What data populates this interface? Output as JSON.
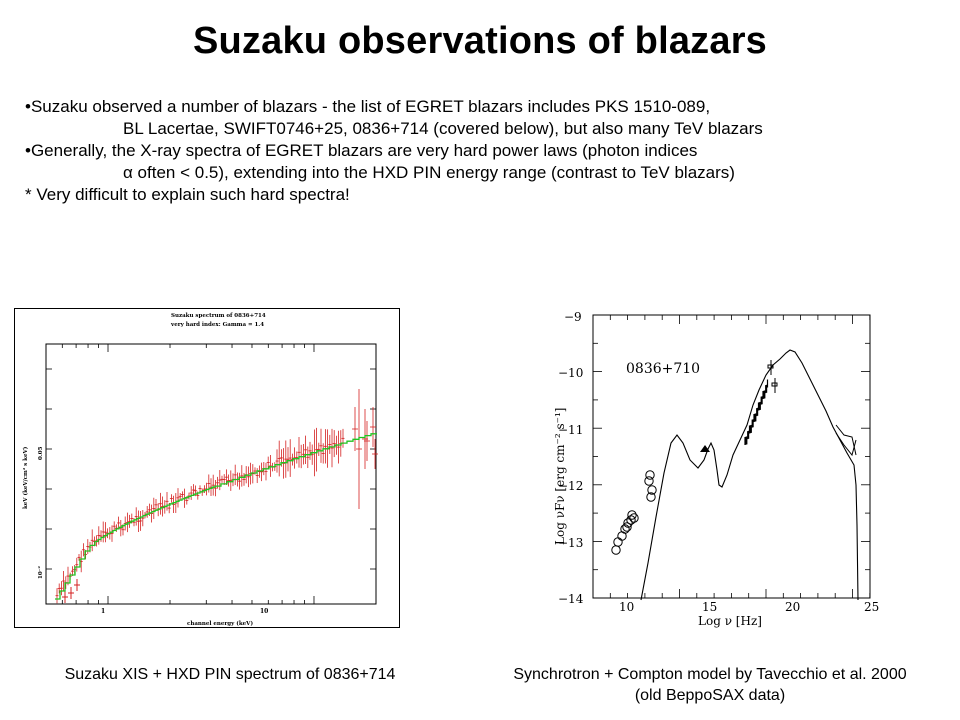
{
  "title": "Suzaku observations of blazars",
  "bullets": [
    {
      "prefix": "•",
      "lines": [
        "Suzaku observed a number of blazars - the list of EGRET blazars includes PKS 1510-089,",
        "BL Lacertae, SWIFT0746+25, 0836+714 (covered below), but also many TeV blazars"
      ]
    },
    {
      "prefix": "•",
      "lines": [
        "Generally, the X-ray spectra of EGRET blazars are very hard power laws (photon indices",
        "α often <  0.5), extending into the HXD PIN energy range (contrast to TeV blazars)"
      ]
    },
    {
      "prefix": "*",
      "lines": [
        " Very difficult to explain such hard spectra!"
      ]
    }
  ],
  "left_plot": {
    "header_line1": "Suzaku spectrum of 0836+714",
    "header_line2": "very hard index:  Gamma = 1.4",
    "ylabel": "keV (keV/cm² s keV)",
    "xlabel": "channel energy (keV)",
    "xticks": [
      "1",
      "10"
    ],
    "yticks": [
      "0.05",
      "10⁻²"
    ],
    "colors": {
      "data": "#d42020",
      "model": "#22c322"
    }
  },
  "right_plot": {
    "label": "0836+710",
    "yticks": [
      "−9",
      "−10",
      "−11",
      "−12",
      "−13",
      "−14"
    ],
    "xticks": [
      "10",
      "15",
      "20",
      "25"
    ],
    "xlabel": "Log ν [Hz]",
    "ylabel": "Log νFν [erg cm⁻² s⁻¹]"
  },
  "captions": {
    "left": "Suzaku XIS + HXD PIN spectrum of 0836+714",
    "right_line1": "Synchrotron + Compton model by Tavecchio et al. 2000",
    "right_line2": "(old BeppoSAX data)"
  }
}
